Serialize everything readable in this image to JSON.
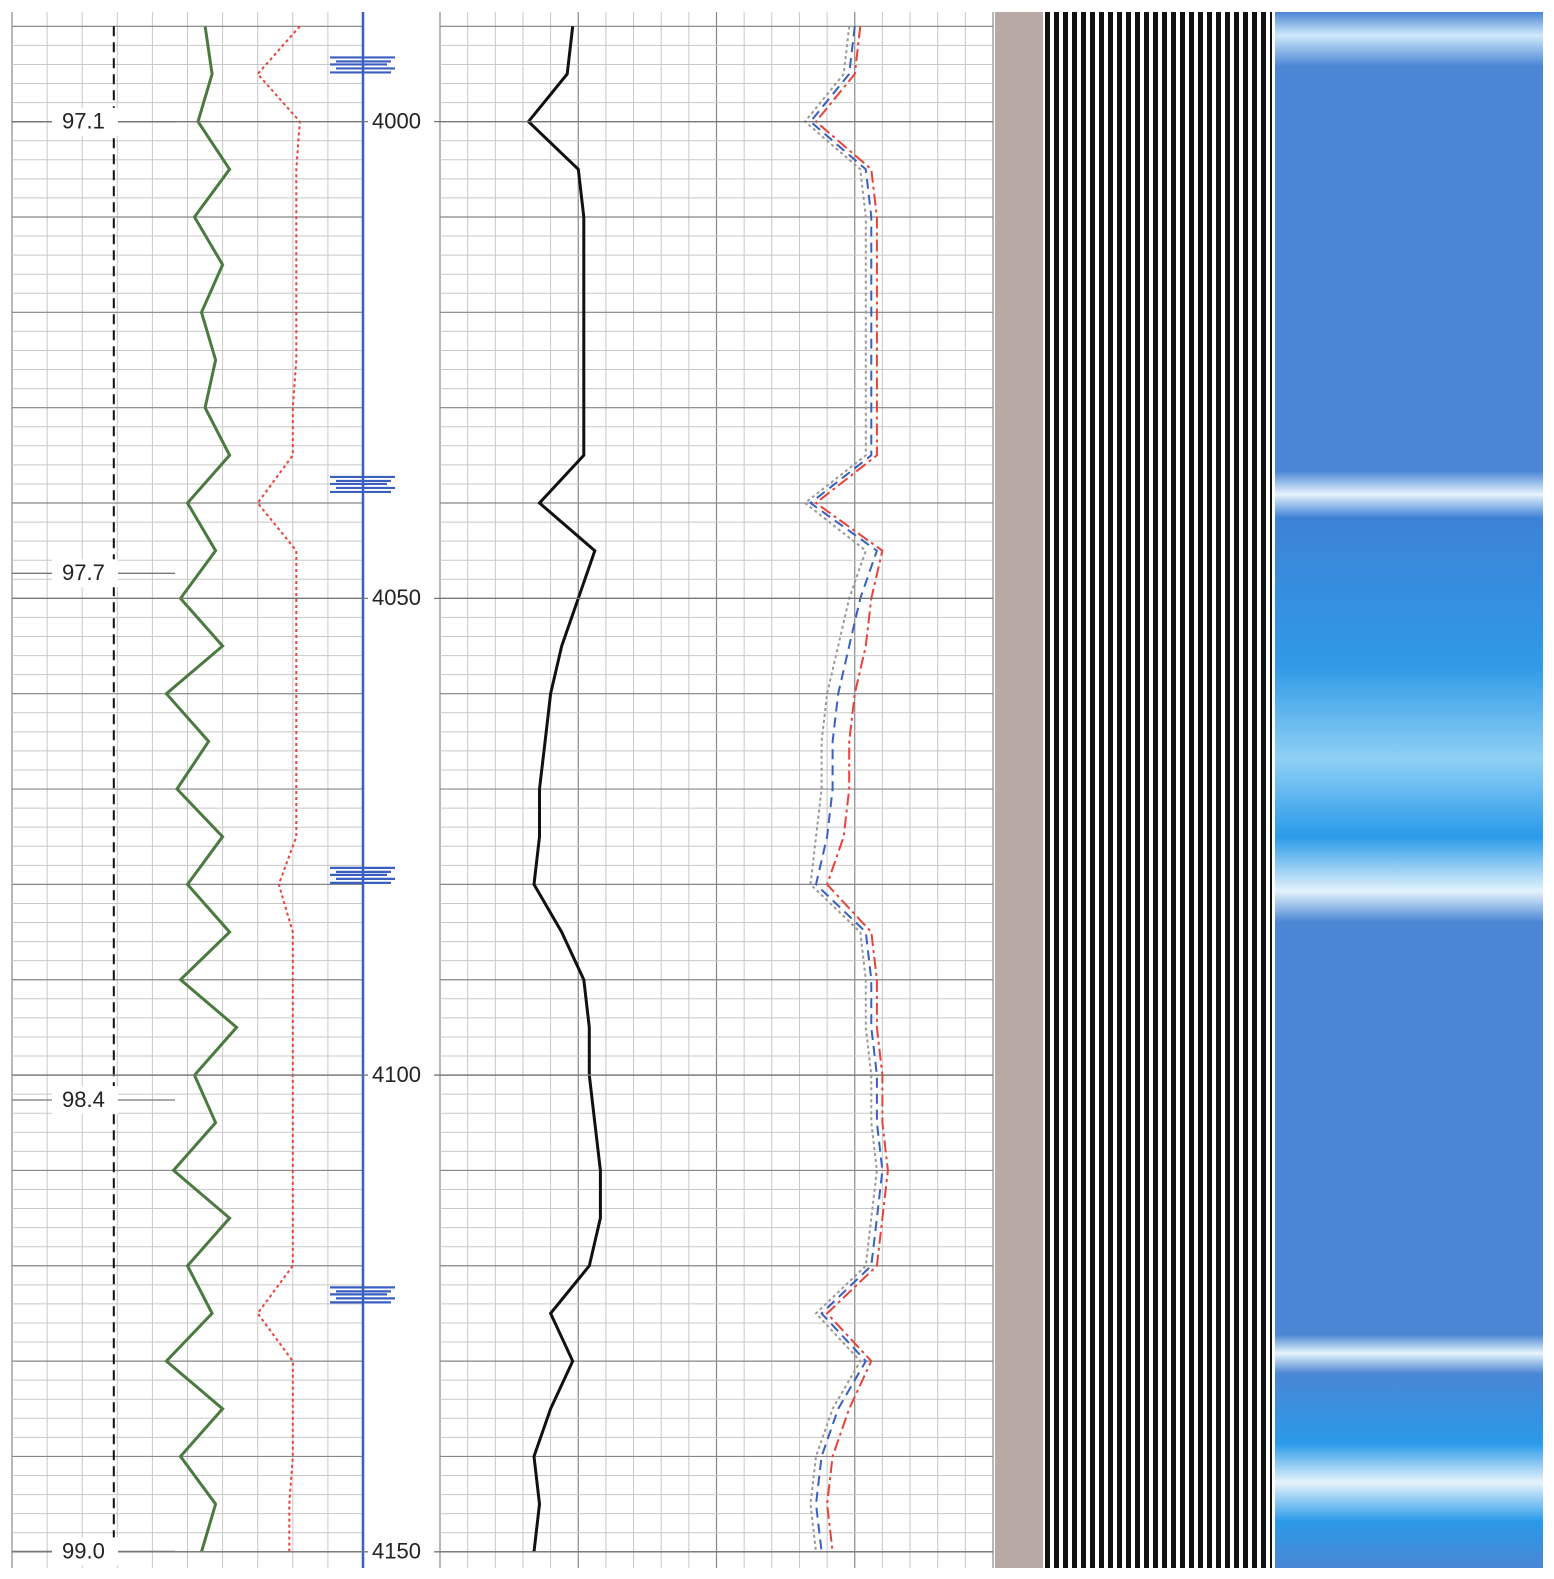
{
  "chart_data": {
    "type": "well-log",
    "depth": [
      3990,
      3995,
      4000,
      4005,
      4010,
      4015,
      4020,
      4025,
      4030,
      4035,
      4040,
      4045,
      4050,
      4055,
      4060,
      4065,
      4070,
      4075,
      4080,
      4085,
      4090,
      4095,
      4100,
      4105,
      4110,
      4115,
      4120,
      4125,
      4130,
      4135,
      4140,
      4145,
      4150
    ],
    "ylim": [
      3988.5,
      4151.7
    ],
    "yticks": [
      4000,
      4050,
      4100,
      4150
    ],
    "y2lim": [
      96.954,
      99.022
    ],
    "y2ticks": [
      97.1,
      97.7,
      98.4,
      {
        "value": 99,
        "label": "99.0"
      }
    ],
    "grid": true,
    "tracks": [
      {
        "xlim": [
          0,
          100
        ],
        "series": [
          {
            "color": "#4b7a40",
            "dash": "solid",
            "values": [
              55,
              57,
              53,
              62,
              52,
              60,
              54,
              58,
              55,
              62,
              50,
              58,
              48,
              60,
              44,
              56,
              47,
              60,
              50,
              62,
              48,
              64,
              52,
              58,
              46,
              62,
              50,
              57,
              44,
              60,
              48,
              58,
              54
            ]
          },
          {
            "color": "#e8433a",
            "dash": "dotted",
            "values": [
              82,
              70,
              82,
              81,
              81,
              81,
              81,
              81,
              80,
              80,
              70,
              81,
              81,
              81,
              81,
              81,
              81,
              81,
              76,
              80,
              80,
              80,
              80,
              80,
              80,
              80,
              80,
              70,
              80,
              80,
              80,
              79,
              79
            ]
          },
          {
            "color": "#111111",
            "dash": "dashed",
            "values": [
              29,
              29,
              29,
              29,
              29,
              29,
              29,
              29,
              29,
              29,
              29,
              29,
              29,
              29,
              29,
              29,
              29,
              29,
              29,
              29,
              29,
              29,
              29,
              29,
              29,
              29,
              29,
              29,
              29,
              29,
              29,
              29,
              29
            ]
          }
        ],
        "markers": [
          3994,
          4038,
          4079,
          4123
        ],
        "marker_color": "#3a5fc0"
      },
      {
        "xlim": [
          0,
          100
        ],
        "series": [
          {
            "color": "#111111",
            "dash": "solid",
            "values": [
              24,
              23,
              16,
              25,
              26,
              26,
              26,
              26,
              26,
              26,
              18,
              28,
              25,
              22,
              20,
              19,
              18,
              18,
              17,
              22,
              26,
              27,
              27,
              28,
              29,
              29,
              27,
              20,
              24,
              20,
              17,
              18,
              17
            ]
          },
          {
            "color": "#e8433a",
            "dash": "dashdot",
            "values": [
              76,
              75,
              68,
              78,
              79,
              79,
              79,
              79,
              79,
              79,
              68,
              80,
              78,
              77,
              75,
              74,
              74,
              73,
              70,
              78,
              79,
              79,
              80,
              80,
              81,
              80,
              79,
              70,
              78,
              74,
              71,
              70,
              71
            ]
          },
          {
            "color": "#3a5fc0",
            "dash": "dashed",
            "values": [
              75,
              74,
              67,
              77,
              78,
              78,
              78,
              78,
              78,
              78,
              67,
              79,
              76,
              74,
              72,
              71,
              71,
              70,
              68,
              77,
              78,
              78,
              79,
              79,
              80,
              79,
              78,
              69,
              77,
              72,
              69,
              68,
              69
            ]
          },
          {
            "color": "#999999",
            "dash": "dotted",
            "values": [
              74,
              73,
              66,
              76,
              77,
              77,
              77,
              77,
              77,
              77,
              66,
              77,
              74,
              72,
              70,
              69,
              69,
              68,
              67,
              76,
              77,
              77,
              78,
              78,
              79,
              78,
              77,
              68,
              76,
              71,
              68,
              67,
              68
            ]
          }
        ]
      }
    ]
  }
}
